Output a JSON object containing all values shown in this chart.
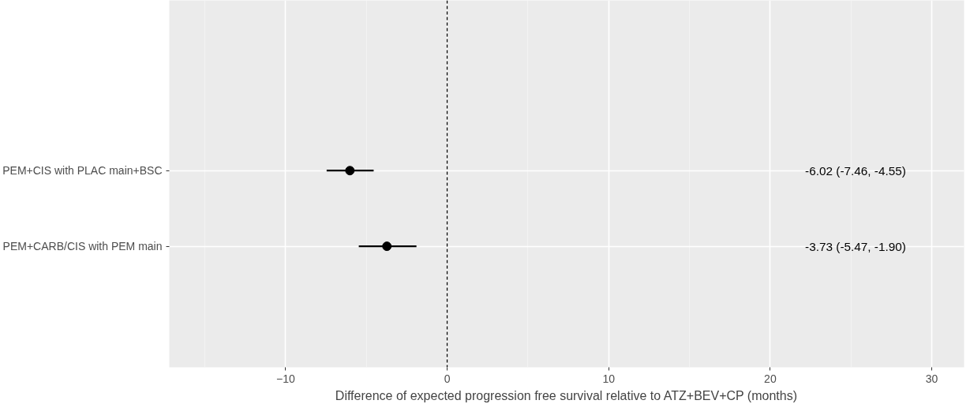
{
  "chart_data": {
    "type": "scatter",
    "categories": [
      "PEM+CIS with PLAC main+BSC",
      "PEM+CARB/CIS with PEM main"
    ],
    "orientation": "horizontal",
    "series": [
      {
        "color": "#000000",
        "values": [
          -6.02,
          -3.73
        ],
        "errors": [
          [
            -7.46,
            -4.55
          ],
          [
            -5.47,
            -1.9
          ]
        ]
      }
    ],
    "annotations": [
      "-6.02 (-7.46, -4.55)",
      "-3.73 (-5.47, -1.90)"
    ],
    "xlabel": "Difference of expected progression free survival relative to ATZ+BEV+CP (months)",
    "xlim": [
      -17.2,
      32.0
    ],
    "xticks": [
      -10,
      0,
      10,
      20,
      30
    ],
    "ref_lines": [
      {
        "axis": "x",
        "value": 0,
        "line_style": "dashed",
        "color": "#000000"
      }
    ],
    "marker": "circle",
    "grid": true
  }
}
